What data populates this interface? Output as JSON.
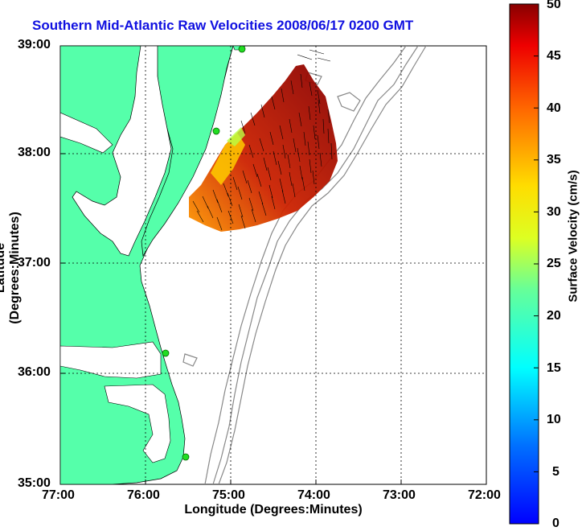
{
  "title": "Southern Mid-Atlantic Raw Velocities 2008/06/17 0200 GMT",
  "x_axis": {
    "label": "Longitude (Degrees:Minutes)",
    "ticks": [
      "77:00",
      "76:00",
      "75:00",
      "74:00",
      "73:00",
      "72:00"
    ]
  },
  "y_axis": {
    "label": "Latitude (Degrees:Minutes)",
    "ticks": [
      "39:00",
      "38:00",
      "37:00",
      "36:00",
      "35:00"
    ]
  },
  "colorbar": {
    "label": "Surface Velocity (cm/s)",
    "ticks": [
      "50",
      "45",
      "40",
      "35",
      "30",
      "25",
      "20",
      "15",
      "10",
      "5",
      "0"
    ],
    "range": [
      0,
      50
    ],
    "colormap": "jet"
  },
  "map": {
    "land_color": "#55ffaa",
    "bathymetry_contour_color": "#888888",
    "gridlines": "dotted",
    "station_color": "#22dd22"
  }
}
